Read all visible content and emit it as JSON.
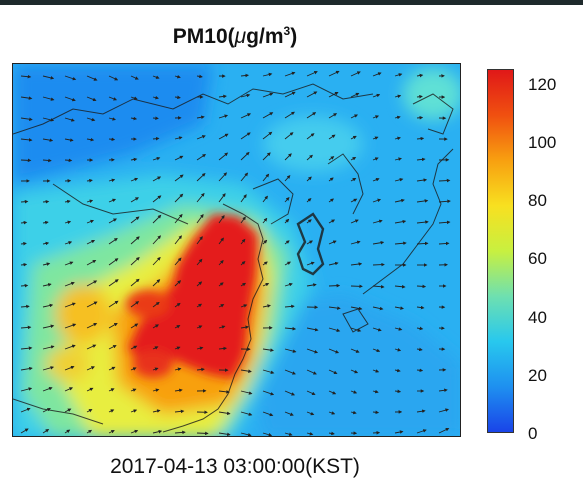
{
  "title": {
    "prefix": "PM10(",
    "unit_mu": "μ",
    "unit_main": "g/m",
    "unit_exp": "3",
    "suffix": ")"
  },
  "timestamp": "2017-04-13 03:00:00(KST)",
  "colorbar": {
    "ticks": [
      "120",
      "100",
      "80",
      "60",
      "40",
      "20",
      "0"
    ],
    "min": 0,
    "max": 125,
    "colors": [
      "#1a44e8",
      "#1e90f0",
      "#28c8ee",
      "#6ee0b0",
      "#c8f040",
      "#f8e020",
      "#f8a010",
      "#f05010",
      "#e01818"
    ]
  },
  "map": {
    "background_color": "#2ab0f2",
    "hotspot_color": "#e82020"
  }
}
